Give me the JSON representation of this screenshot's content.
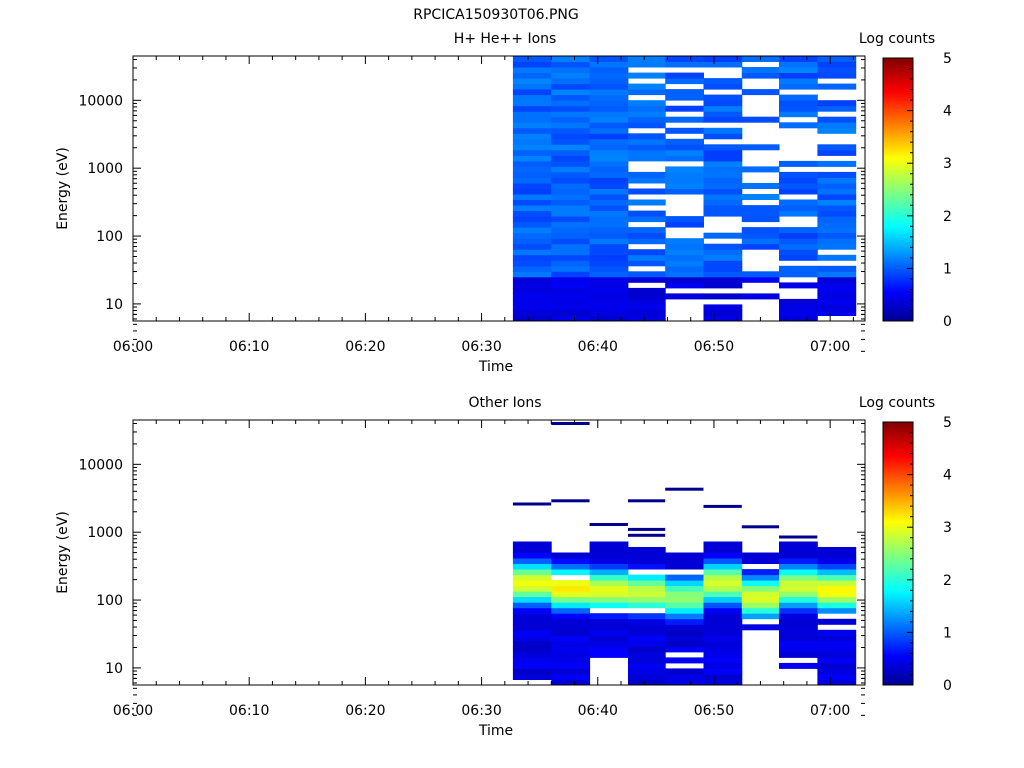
{
  "figure_title": "RPCICA150930T06.PNG",
  "chart_data": [
    {
      "type": "heatmap",
      "title": "H+ He++ Ions",
      "xlabel": "Time",
      "ylabel": "Energy (eV)",
      "colorbar_label": "Log counts",
      "colorbar_ticks": [
        "0",
        "1",
        "2",
        "3",
        "4",
        "5"
      ],
      "color_range": [
        0,
        5
      ],
      "colormap": [
        "#00008f",
        "#0000ff",
        "#00ffff",
        "#ffff00",
        "#ff0000",
        "#800000"
      ],
      "x_ticks": [
        "06:00",
        "06:10",
        "06:20",
        "06:30",
        "06:40",
        "06:50",
        "07:00"
      ],
      "y_ticks": [
        "10",
        "100",
        "1000",
        "10000"
      ],
      "x_range_minutes": [
        0,
        63
      ],
      "y_range": [
        5.6,
        45000
      ],
      "y_scale": "log",
      "time_bins_minutes": [
        [
          32.7,
          36.0
        ],
        [
          36.0,
          39.3
        ],
        [
          39.3,
          42.6
        ],
        [
          42.6,
          45.8
        ],
        [
          45.8,
          49.1
        ],
        [
          49.1,
          52.4
        ],
        [
          52.4,
          55.6
        ],
        [
          55.6,
          58.9
        ],
        [
          58.9,
          62.2
        ]
      ],
      "energy_bins": 48
    },
    {
      "type": "heatmap",
      "title": "Other Ions",
      "xlabel": "Time",
      "ylabel": "Energy (eV)",
      "colorbar_label": "Log counts",
      "colorbar_ticks": [
        "0",
        "1",
        "2",
        "3",
        "4",
        "5"
      ],
      "color_range": [
        0,
        5
      ],
      "colormap": [
        "#00008f",
        "#0000ff",
        "#00ffff",
        "#ffff00",
        "#ff0000",
        "#800000"
      ],
      "x_ticks": [
        "06:00",
        "06:10",
        "06:20",
        "06:30",
        "06:40",
        "06:50",
        "07:00"
      ],
      "y_ticks": [
        "10",
        "100",
        "1000",
        "10000"
      ],
      "x_range_minutes": [
        0,
        63
      ],
      "y_range": [
        5.6,
        45000
      ],
      "y_scale": "log",
      "time_bins_minutes": [
        [
          32.7,
          36.0
        ],
        [
          36.0,
          39.3
        ],
        [
          39.3,
          42.6
        ],
        [
          42.6,
          45.8
        ],
        [
          45.8,
          49.1
        ],
        [
          49.1,
          52.4
        ],
        [
          52.4,
          55.6
        ],
        [
          55.6,
          58.9
        ],
        [
          58.9,
          62.2
        ]
      ],
      "energy_bins": 48
    }
  ]
}
